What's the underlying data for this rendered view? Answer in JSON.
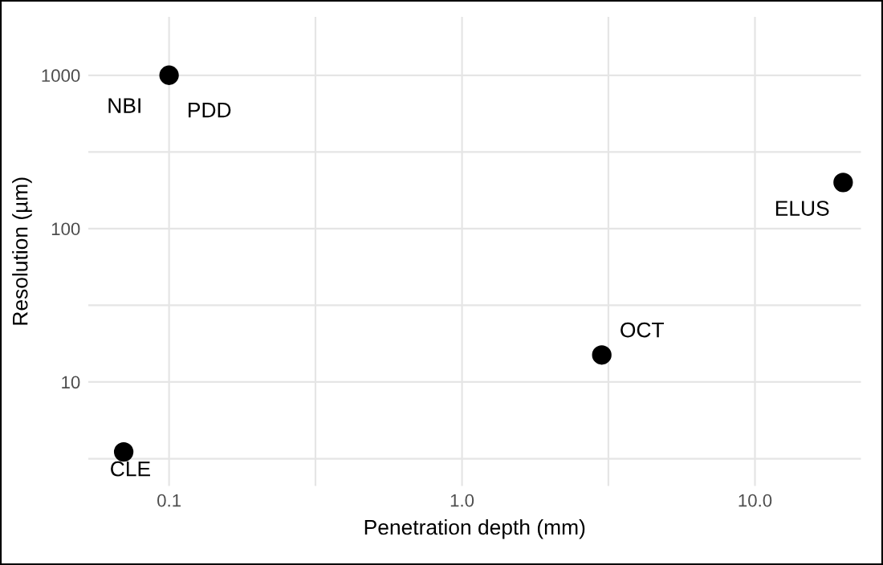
{
  "chart_data": {
    "type": "scatter",
    "xlabel": "Penetration depth (mm)",
    "ylabel": "Resolution (µm)",
    "x": [
      0.1,
      0.07,
      3,
      20
    ],
    "series": [
      {
        "color": "#000000",
        "values": [
          1000,
          3.5,
          15,
          200
        ]
      }
    ],
    "annotations": [
      {
        "text": "NBI",
        "x": 0.1,
        "y": 1000
      },
      {
        "text": "PDD",
        "x": 0.1,
        "y": 1000
      },
      {
        "text": "CLE",
        "x": 0.07,
        "y": 3.5
      },
      {
        "text": "OCT",
        "x": 3,
        "y": 15
      },
      {
        "text": "ELUS",
        "x": 20,
        "y": 200
      }
    ],
    "log": "xy",
    "xlim": [
      0.053,
      23
    ],
    "ylim": [
      2.1,
      2400
    ],
    "xticks": [
      {
        "value": 0.1,
        "label": "0.1"
      },
      {
        "value": 0.316,
        "label": null
      },
      {
        "value": 1,
        "label": "1.0"
      },
      {
        "value": 3.16,
        "label": null
      },
      {
        "value": 10,
        "label": "10.0"
      }
    ],
    "yticks": [
      {
        "value": 3.16,
        "label": null
      },
      10,
      {
        "value": 31.6,
        "label": null
      },
      100,
      {
        "value": 316,
        "label": null
      },
      1000
    ],
    "grid": true,
    "marker": "circle"
  }
}
